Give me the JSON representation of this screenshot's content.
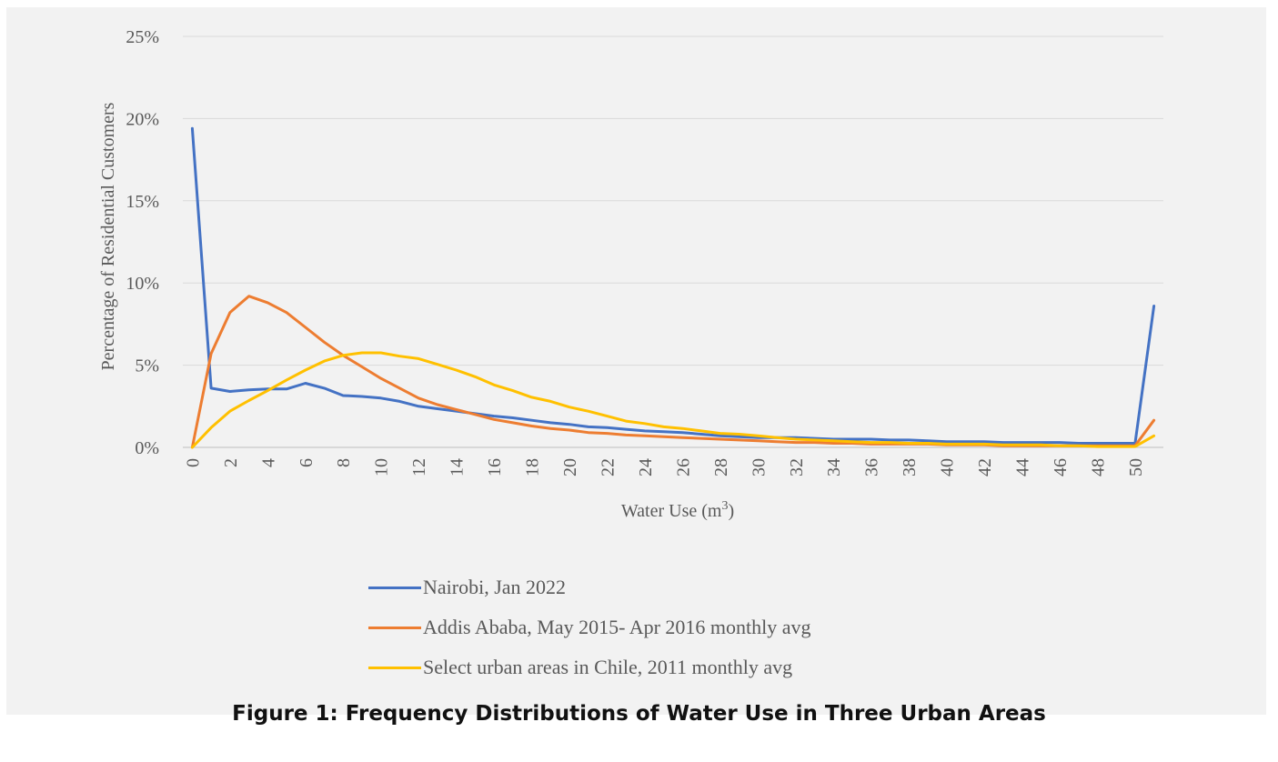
{
  "caption": "Figure 1: Frequency Distributions of Water Use in Three Urban Areas",
  "chart_data": {
    "type": "line",
    "title": "",
    "xlabel": "Water Use (m",
    "xlabel_sup": "3",
    "xlabel_suffix": ")",
    "ylabel": "Percentage of Residential Customers",
    "ylim": [
      0,
      25
    ],
    "yticks": [
      "0%",
      "5%",
      "10%",
      "15%",
      "20%",
      "25%"
    ],
    "ytick_values": [
      0,
      5,
      10,
      15,
      20,
      25
    ],
    "x": [
      0,
      1,
      2,
      3,
      4,
      5,
      6,
      7,
      8,
      9,
      10,
      11,
      12,
      13,
      14,
      15,
      16,
      17,
      18,
      19,
      20,
      21,
      22,
      23,
      24,
      25,
      26,
      27,
      28,
      29,
      30,
      31,
      32,
      33,
      34,
      35,
      36,
      37,
      38,
      39,
      40,
      41,
      42,
      43,
      44,
      45,
      46,
      47,
      48,
      49,
      50,
      51
    ],
    "xtick_labels": [
      "0",
      "2",
      "4",
      "6",
      "8",
      "10",
      "12",
      "14",
      "16",
      "18",
      "20",
      "22",
      "24",
      "26",
      "28",
      "30",
      "32",
      "34",
      "36",
      "38",
      "40",
      "42",
      "44",
      "46",
      "48",
      "50"
    ],
    "xtick_values": [
      0,
      2,
      4,
      6,
      8,
      10,
      12,
      14,
      16,
      18,
      20,
      22,
      24,
      26,
      28,
      30,
      32,
      34,
      36,
      38,
      40,
      42,
      44,
      46,
      48,
      50
    ],
    "grid": true,
    "legend_position": "bottom",
    "series": [
      {
        "name": "Nairobi, Jan 2022",
        "color": "#4472c4",
        "values": [
          19.4,
          3.6,
          3.4,
          3.5,
          3.55,
          3.55,
          3.9,
          3.6,
          3.15,
          3.1,
          3.0,
          2.8,
          2.5,
          2.35,
          2.2,
          2.05,
          1.9,
          1.8,
          1.65,
          1.5,
          1.4,
          1.25,
          1.2,
          1.1,
          1.0,
          0.95,
          0.9,
          0.8,
          0.7,
          0.65,
          0.6,
          0.6,
          0.6,
          0.55,
          0.5,
          0.5,
          0.5,
          0.45,
          0.45,
          0.4,
          0.35,
          0.35,
          0.35,
          0.3,
          0.3,
          0.3,
          0.3,
          0.25,
          0.25,
          0.25,
          0.25,
          8.6
        ]
      },
      {
        "name": "Addis Ababa, May 2015- Apr 2016 monthly avg",
        "color": "#ed7d31",
        "values": [
          0,
          5.7,
          8.2,
          9.2,
          8.8,
          8.2,
          7.3,
          6.4,
          5.6,
          4.9,
          4.2,
          3.6,
          3.0,
          2.6,
          2.3,
          2.0,
          1.7,
          1.5,
          1.3,
          1.15,
          1.05,
          0.9,
          0.85,
          0.75,
          0.7,
          0.65,
          0.6,
          0.55,
          0.5,
          0.45,
          0.4,
          0.35,
          0.3,
          0.3,
          0.25,
          0.25,
          0.2,
          0.2,
          0.2,
          0.2,
          0.15,
          0.15,
          0.15,
          0.1,
          0.1,
          0.1,
          0.1,
          0.1,
          0.1,
          0.1,
          0.1,
          1.65
        ]
      },
      {
        "name": "Select urban areas in Chile, 2011 monthly avg",
        "color": "#ffc000",
        "values": [
          0,
          1.2,
          2.2,
          2.85,
          3.45,
          4.1,
          4.7,
          5.25,
          5.6,
          5.75,
          5.75,
          5.55,
          5.4,
          5.05,
          4.7,
          4.3,
          3.8,
          3.45,
          3.05,
          2.8,
          2.45,
          2.2,
          1.9,
          1.6,
          1.45,
          1.25,
          1.15,
          1.0,
          0.85,
          0.8,
          0.7,
          0.6,
          0.5,
          0.45,
          0.4,
          0.35,
          0.3,
          0.3,
          0.25,
          0.25,
          0.2,
          0.2,
          0.2,
          0.15,
          0.15,
          0.15,
          0.1,
          0.1,
          0.05,
          0.05,
          0.05,
          0.7
        ]
      }
    ]
  }
}
